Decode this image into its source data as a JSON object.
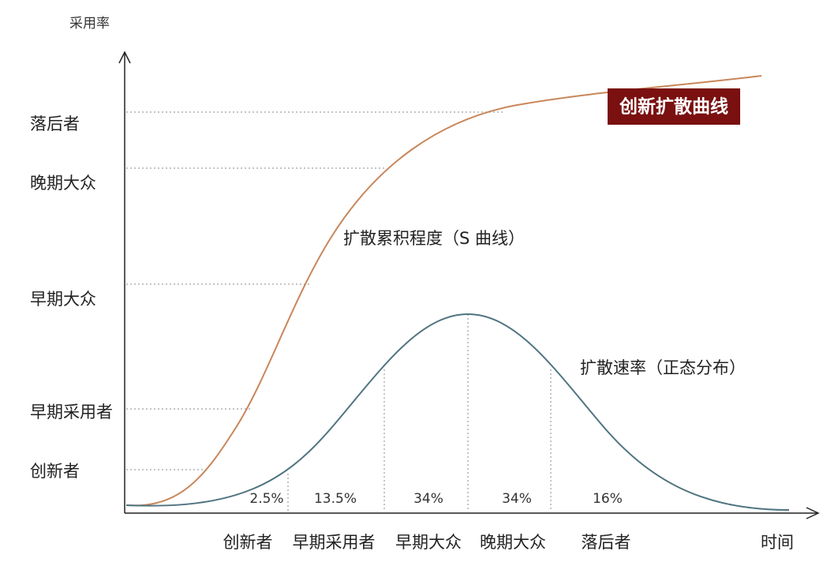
{
  "y_axis_label": "采用率",
  "x_axis_label": "时间",
  "y_levels": [
    "落后者",
    "晚期大众",
    "早期大众",
    "早期采用者",
    "创新者"
  ],
  "x_segments": [
    {
      "label": "创新者",
      "share": "2.5%"
    },
    {
      "label": "早期采用者",
      "share": "13.5%"
    },
    {
      "label": "早期大众",
      "share": "34%"
    },
    {
      "label": "晚期大众",
      "share": "34%"
    },
    {
      "label": "落后者",
      "share": "16%"
    }
  ],
  "s_curve_label": "扩散累积程度（S 曲线）",
  "bell_curve_label": "扩散速率（正态分布）",
  "badge": "创新扩散曲线"
}
